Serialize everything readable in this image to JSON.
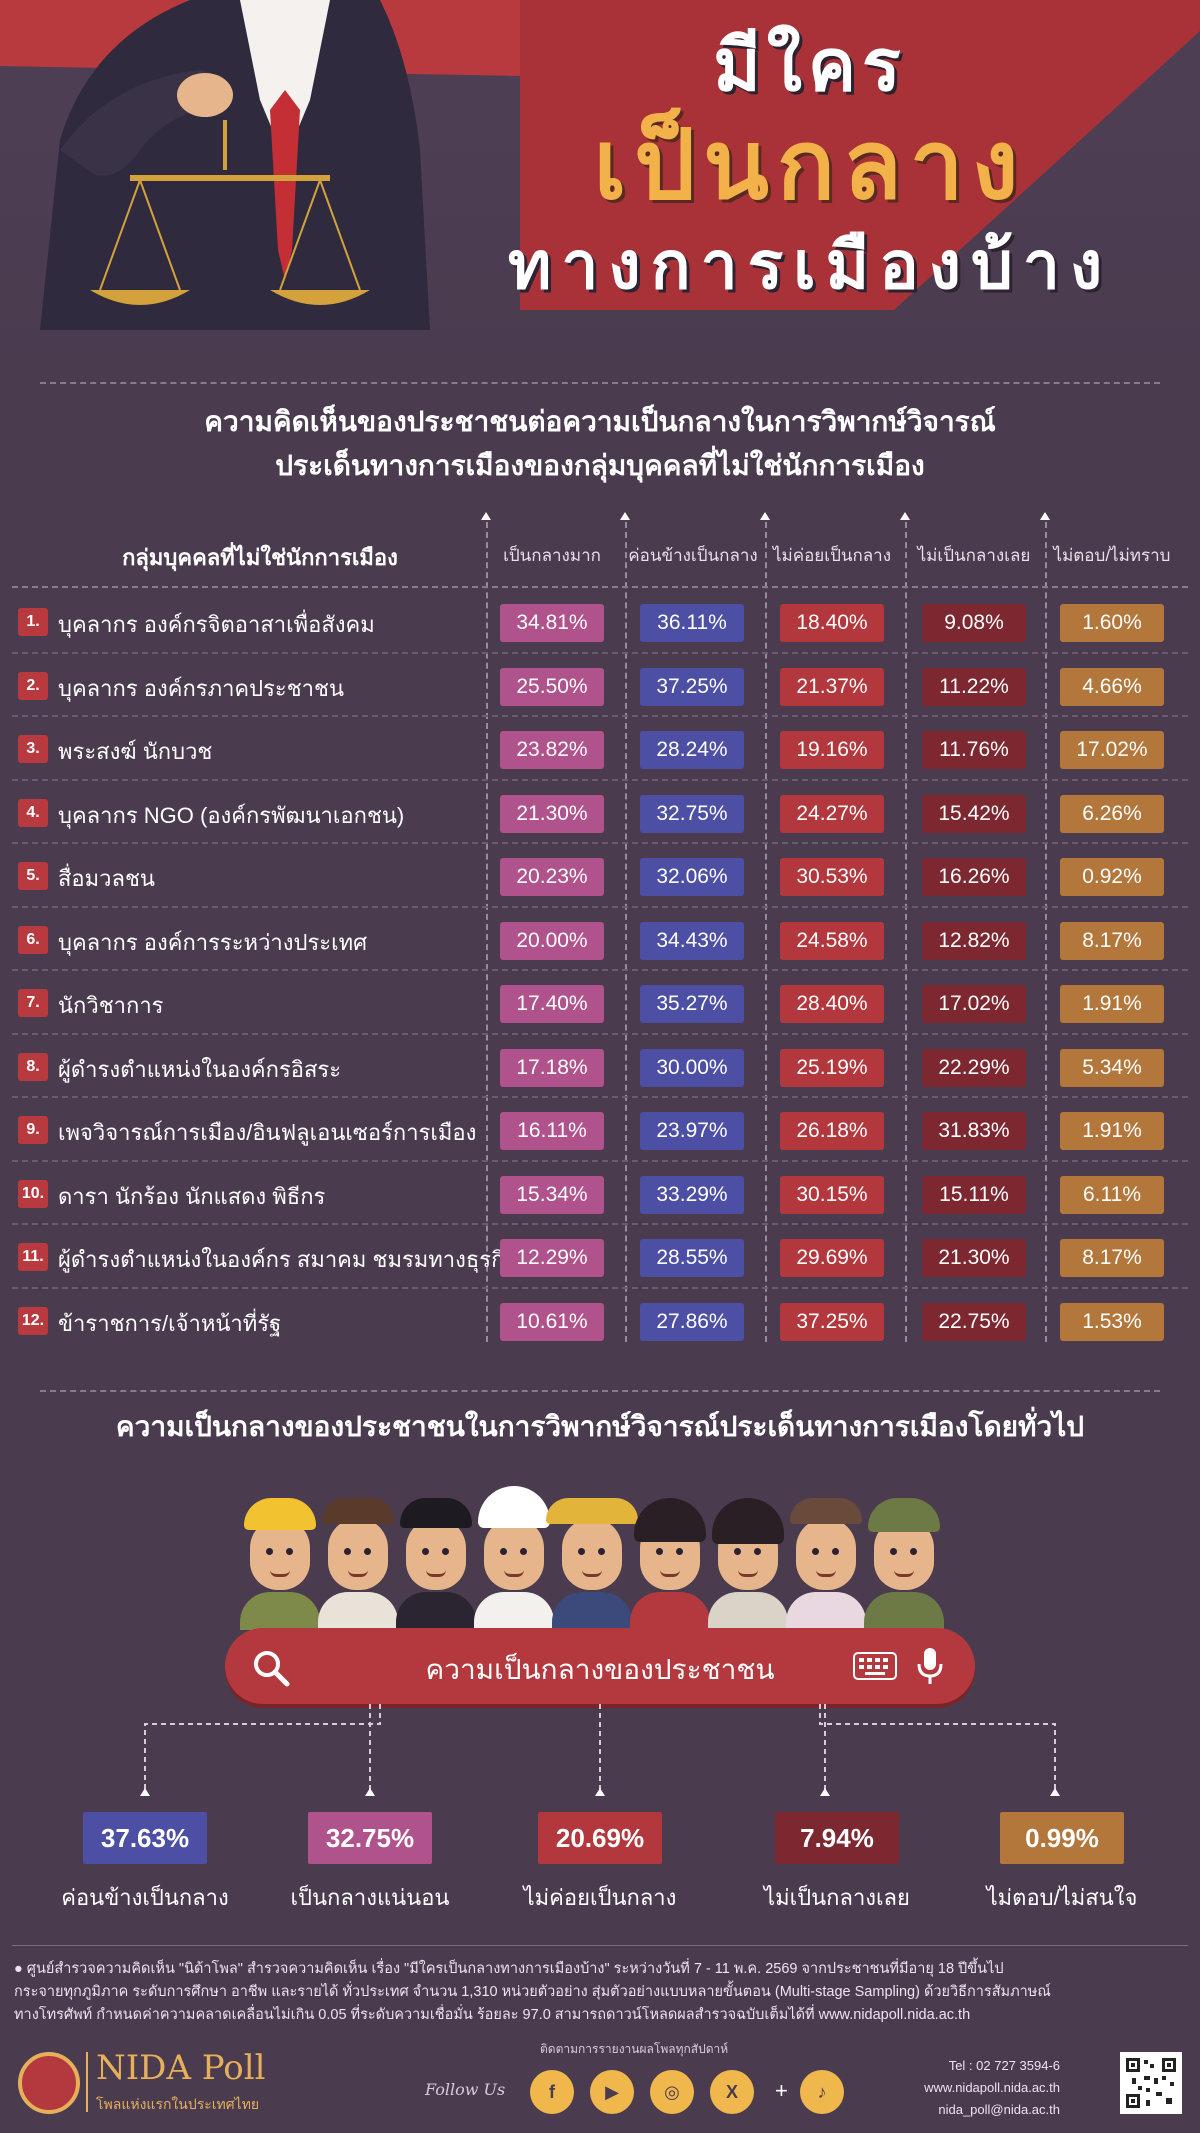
{
  "header": {
    "title_line1": "มีใคร",
    "title_line2": "เป็นกลาง",
    "title_line3": "ทางการเมืองบ้าง",
    "subtitle_line1": "ความคิดเห็นของประชาชนต่อความเป็นกลางในการวิพากษ์วิจารณ์",
    "subtitle_line2": "ประเด็นทางการเมืองของกลุ่มบุคคลที่ไม่ใช่นักการเมือง"
  },
  "table": {
    "group_header": "กลุ่มบุคคลที่ไม่ใช่นักการเมือง",
    "columns": [
      "เป็นกลางมาก",
      "ค่อนข้างเป็นกลาง",
      "ไม่ค่อยเป็นกลาง",
      "ไม่เป็นกลางเลย",
      "ไม่ตอบ/ไม่ทราบ"
    ],
    "rows": [
      {
        "num": "1.",
        "name": "บุคลากร องค์กรจิตอาสาเพื่อสังคม",
        "v": [
          "34.81%",
          "36.11%",
          "18.40%",
          "9.08%",
          "1.60%"
        ]
      },
      {
        "num": "2.",
        "name": "บุคลากร องค์กรภาคประชาชน",
        "v": [
          "25.50%",
          "37.25%",
          "21.37%",
          "11.22%",
          "4.66%"
        ]
      },
      {
        "num": "3.",
        "name": "พระสงฆ์ นักบวช",
        "v": [
          "23.82%",
          "28.24%",
          "19.16%",
          "11.76%",
          "17.02%"
        ]
      },
      {
        "num": "4.",
        "name": "บุคลากร NGO (องค์กรพัฒนาเอกชน)",
        "v": [
          "21.30%",
          "32.75%",
          "24.27%",
          "15.42%",
          "6.26%"
        ]
      },
      {
        "num": "5.",
        "name": "สื่อมวลชน",
        "v": [
          "20.23%",
          "32.06%",
          "30.53%",
          "16.26%",
          "0.92%"
        ]
      },
      {
        "num": "6.",
        "name": "บุคลากร องค์การระหว่างประเทศ",
        "v": [
          "20.00%",
          "34.43%",
          "24.58%",
          "12.82%",
          "8.17%"
        ]
      },
      {
        "num": "7.",
        "name": "นักวิชาการ",
        "v": [
          "17.40%",
          "35.27%",
          "28.40%",
          "17.02%",
          "1.91%"
        ]
      },
      {
        "num": "8.",
        "name": "ผู้ดำรงตำแหน่งในองค์กรอิสระ",
        "v": [
          "17.18%",
          "30.00%",
          "25.19%",
          "22.29%",
          "5.34%"
        ]
      },
      {
        "num": "9.",
        "name": "เพจวิจารณ์การเมือง/อินฟลูเอนเซอร์การเมือง",
        "v": [
          "16.11%",
          "23.97%",
          "26.18%",
          "31.83%",
          "1.91%"
        ]
      },
      {
        "num": "10.",
        "name": "ดารา นักร้อง นักแสดง พิธีกร",
        "v": [
          "15.34%",
          "33.29%",
          "30.15%",
          "15.11%",
          "6.11%"
        ]
      },
      {
        "num": "11.",
        "name": "ผู้ดำรงตำแหน่งในองค์กร สมาคม ชมรมทางธุรกิจ",
        "v": [
          "12.29%",
          "28.55%",
          "29.69%",
          "21.30%",
          "8.17%"
        ]
      },
      {
        "num": "12.",
        "name": "ข้าราชการ/เจ้าหน้าที่รัฐ",
        "v": [
          "10.61%",
          "27.86%",
          "37.25%",
          "22.75%",
          "1.53%"
        ]
      }
    ]
  },
  "section2": {
    "title": "ความเป็นกลางของประชาชนในการวิพากษ์วิจารณ์ประเด็นทางการเมืองโดยทั่วไป",
    "search_text": "ความเป็นกลางของประชาชน",
    "stats": [
      {
        "value": "37.63%",
        "label": "ค่อนข้างเป็นกลาง",
        "color": "#4c4fa4"
      },
      {
        "value": "32.75%",
        "label": "เป็นกลางแน่นอน",
        "color": "#b0538d"
      },
      {
        "value": "20.69%",
        "label": "ไม่ค่อยเป็นกลาง",
        "color": "#b3383d"
      },
      {
        "value": "7.94%",
        "label": "ไม่เป็นกลางเลย",
        "color": "#7d2730"
      },
      {
        "value": "0.99%",
        "label": "ไม่ตอบ/ไม่สนใจ",
        "color": "#b3763b"
      }
    ]
  },
  "footnote": {
    "line1": "● ศูนย์สำรวจความคิดเห็น \"นิด้าโพล\" สำรวจความคิดเห็น เรื่อง \"มีใครเป็นกลางทางการเมืองบ้าง\" ระหว่างวันที่ 7 - 11 พ.ค. 2569 จากประชาชนที่มีอายุ 18 ปีขึ้นไป",
    "line2": "กระจายทุกภูมิภาค ระดับการศึกษา อาชีพ และรายได้ ทั่วประเทศ จำนวน 1,310 หน่วยตัวอย่าง สุ่มตัวอย่างแบบหลายขั้นตอน (Multi-stage Sampling) ด้วยวิธีการสัมภาษณ์",
    "line3": "ทางโทรศัพท์ กำหนดค่าความคลาดเคลื่อนไม่เกิน 0.05 ที่ระดับความเชื่อมั่น ร้อยละ 97.0 สามารถดาวน์โหลดผลสำรวจฉบับเต็มได้ที่ www.nidapoll.nida.ac.th"
  },
  "footer": {
    "logo_name": "NIDA Poll",
    "logo_tagline": "โพลแห่งแรกในประเทศไทย",
    "follow_caption": "ติดตามการรายงานผลโพลทุกสัปดาห์",
    "follow_us": "Follow Us",
    "social": [
      {
        "icon": "facebook-icon",
        "glyph": "f"
      },
      {
        "icon": "youtube-icon",
        "glyph": "▶"
      },
      {
        "icon": "instagram-icon",
        "glyph": "◎"
      },
      {
        "icon": "x-icon",
        "glyph": "X"
      },
      {
        "icon": "tiktok-icon",
        "glyph": "♪"
      }
    ],
    "plus": "+",
    "tel": "Tel : 02 727 3594-6",
    "web": "www.nidapoll.nida.ac.th",
    "email": "nida_poll@nida.ac.th"
  }
}
